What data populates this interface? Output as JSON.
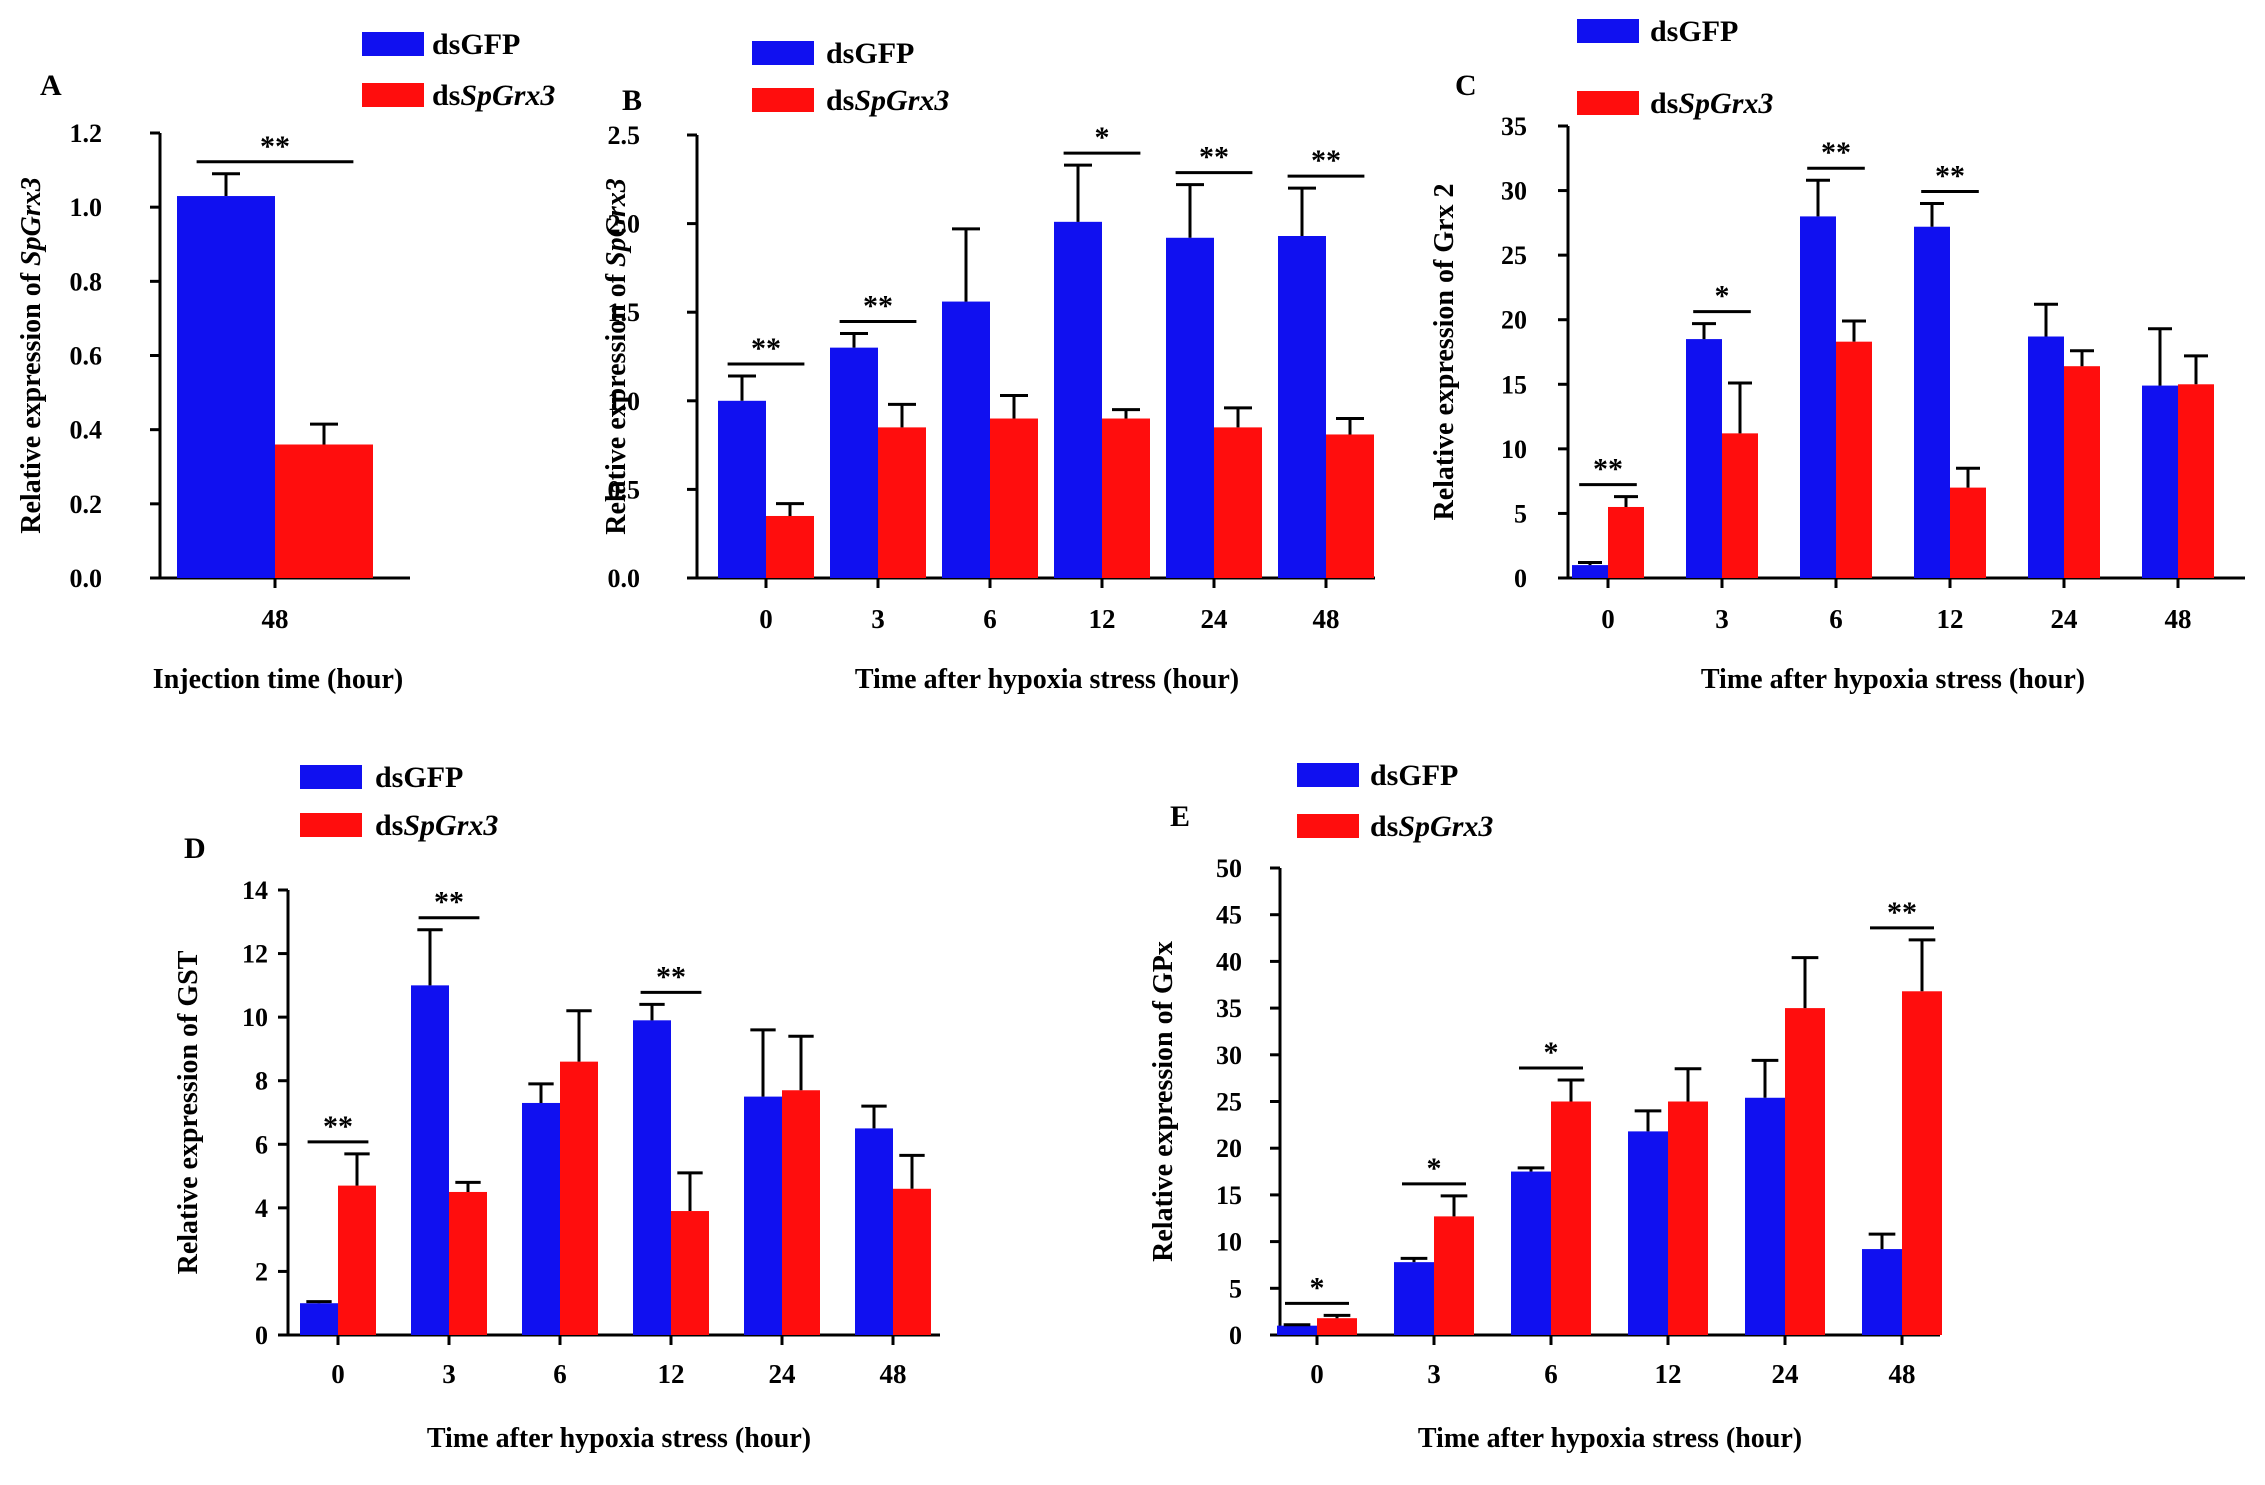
{
  "colors": {
    "dsGFP": "#1010f0",
    "dsSpGrx3": "#ff0d0d"
  },
  "chart_data": [
    {
      "panel": "A",
      "type": "bar",
      "xlabel": "Injection time (hour)",
      "ylabel_prefix": "Relative expression of ",
      "ylabel_gene": "SpGrx3",
      "ylabel_gene_italic": true,
      "ylim": [
        0,
        1.2
      ],
      "yticks": [
        0.0,
        0.2,
        0.4,
        0.6,
        0.8,
        1.0,
        1.2
      ],
      "ytick_decimals": 1,
      "categories": [
        "48"
      ],
      "legend": [
        {
          "prefix": "ds",
          "italic": "",
          "name": "dsGFP",
          "text": "GFP"
        },
        {
          "prefix": "ds",
          "italic": "SpGrx3",
          "name": "dsSpGrx3",
          "text": ""
        }
      ],
      "series": [
        {
          "name": "dsGFP",
          "values": [
            1.03
          ],
          "errors": [
            0.06
          ]
        },
        {
          "name": "dsSpGrx3",
          "values": [
            0.36
          ],
          "errors": [
            0.055
          ]
        }
      ],
      "significance": [
        "**"
      ]
    },
    {
      "panel": "B",
      "type": "bar",
      "xlabel": "Time after hypoxia stress (hour)",
      "ylabel_prefix": "Relative expression of ",
      "ylabel_gene": "SpGrx3",
      "ylabel_gene_italic": true,
      "ylim": [
        0,
        2.5
      ],
      "yticks": [
        0.0,
        0.5,
        1.0,
        1.5,
        2.0,
        2.5
      ],
      "ytick_decimals": 1,
      "categories": [
        "0",
        "3",
        "6",
        "12",
        "24",
        "48"
      ],
      "legend": [
        {
          "prefix": "ds",
          "italic": "",
          "name": "dsGFP",
          "text": "GFP"
        },
        {
          "prefix": "ds",
          "italic": "SpGrx3",
          "name": "dsSpGrx3",
          "text": ""
        }
      ],
      "series": [
        {
          "name": "dsGFP",
          "values": [
            1.0,
            1.3,
            1.56,
            2.01,
            1.92,
            1.93
          ],
          "errors": [
            0.14,
            0.08,
            0.41,
            0.32,
            0.3,
            0.27
          ]
        },
        {
          "name": "dsSpGrx3",
          "values": [
            0.35,
            0.85,
            0.9,
            0.9,
            0.85,
            0.81
          ],
          "errors": [
            0.07,
            0.13,
            0.13,
            0.05,
            0.11,
            0.09
          ]
        }
      ],
      "significance": [
        "**",
        "**",
        "",
        "*",
        "**",
        "**"
      ]
    },
    {
      "panel": "C",
      "type": "bar",
      "xlabel": "Time after hypoxia stress (hour)",
      "ylabel_prefix": "Relative expression of ",
      "ylabel_gene": "Grx 2",
      "ylabel_gene_italic": false,
      "ylim": [
        0,
        35
      ],
      "yticks": [
        0,
        5,
        10,
        15,
        20,
        25,
        30,
        35
      ],
      "ytick_decimals": 0,
      "categories": [
        "0",
        "3",
        "6",
        "12",
        "24",
        "48"
      ],
      "legend": [
        {
          "prefix": "ds",
          "italic": "",
          "name": "dsGFP",
          "text": "GFP"
        },
        {
          "prefix": "ds",
          "italic": "SpGrx3",
          "name": "dsSpGrx3",
          "text": ""
        }
      ],
      "series": [
        {
          "name": "dsGFP",
          "values": [
            1.0,
            18.5,
            28.0,
            27.2,
            18.7,
            14.9
          ],
          "errors": [
            0.2,
            1.2,
            2.8,
            1.8,
            2.5,
            4.4
          ]
        },
        {
          "name": "dsSpGrx3",
          "values": [
            5.5,
            11.2,
            18.3,
            7.0,
            16.4,
            15.0
          ],
          "errors": [
            0.8,
            3.9,
            1.6,
            1.5,
            1.2,
            2.2
          ]
        }
      ],
      "significance": [
        "**",
        "*",
        "**",
        "**",
        "",
        ""
      ]
    },
    {
      "panel": "D",
      "type": "bar",
      "xlabel": "Time after hypoxia stress (hour)",
      "ylabel_prefix": "Relative expression of ",
      "ylabel_gene": "GST",
      "ylabel_gene_italic": false,
      "ylim": [
        0,
        14
      ],
      "yticks": [
        0,
        2,
        4,
        6,
        8,
        10,
        12,
        14
      ],
      "ytick_decimals": 0,
      "categories": [
        "0",
        "3",
        "6",
        "12",
        "24",
        "48"
      ],
      "legend": [
        {
          "prefix": "ds",
          "italic": "",
          "name": "dsGFP",
          "text": "GFP"
        },
        {
          "prefix": "ds",
          "italic": "SpGrx3",
          "name": "dsSpGrx3",
          "text": ""
        }
      ],
      "series": [
        {
          "name": "dsGFP",
          "values": [
            1.0,
            11.0,
            7.3,
            9.9,
            7.5,
            6.5
          ],
          "errors": [
            0.05,
            1.75,
            0.6,
            0.5,
            2.1,
            0.7
          ]
        },
        {
          "name": "dsSpGrx3",
          "values": [
            4.7,
            4.5,
            8.6,
            3.9,
            7.7,
            4.6
          ],
          "errors": [
            1.0,
            0.3,
            1.6,
            1.2,
            1.7,
            1.05
          ]
        }
      ],
      "significance": [
        "**",
        "**",
        "",
        "**",
        "",
        ""
      ]
    },
    {
      "panel": "E",
      "type": "bar",
      "xlabel": "Time after hypoxia stress (hour)",
      "ylabel_prefix": "Relative expression of ",
      "ylabel_gene": "GPx",
      "ylabel_gene_italic": false,
      "ylim": [
        0,
        50
      ],
      "yticks": [
        0,
        5,
        10,
        15,
        20,
        25,
        30,
        35,
        40,
        45,
        50
      ],
      "ytick_decimals": 0,
      "categories": [
        "0",
        "3",
        "6",
        "12",
        "24",
        "48"
      ],
      "legend": [
        {
          "prefix": "ds",
          "italic": "",
          "name": "dsGFP",
          "text": "GFP"
        },
        {
          "prefix": "ds",
          "italic": "SpGrx3",
          "name": "dsSpGrx3",
          "text": ""
        }
      ],
      "series": [
        {
          "name": "dsGFP",
          "values": [
            1.0,
            7.8,
            17.5,
            21.8,
            25.4,
            9.2
          ],
          "errors": [
            0.1,
            0.4,
            0.4,
            2.2,
            4.0,
            1.6
          ]
        },
        {
          "name": "dsSpGrx3",
          "values": [
            1.8,
            12.7,
            25.0,
            25.0,
            35.0,
            36.8
          ],
          "errors": [
            0.3,
            2.2,
            2.3,
            3.5,
            5.4,
            5.5
          ]
        }
      ],
      "significance": [
        "*",
        "*",
        "*",
        "",
        "",
        "**"
      ]
    }
  ]
}
